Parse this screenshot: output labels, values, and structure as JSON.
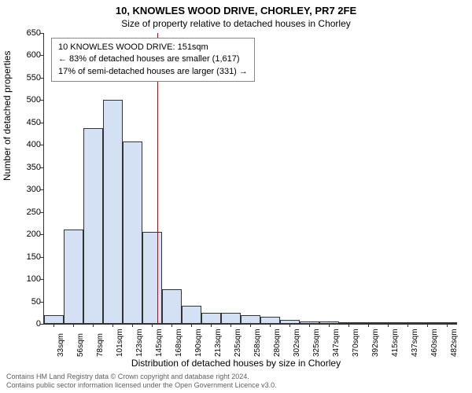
{
  "title": "10, KNOWLES WOOD DRIVE, CHORLEY, PR7 2FE",
  "subtitle": "Size of property relative to detached houses in Chorley",
  "ylabel": "Number of detached properties",
  "xlabel": "Distribution of detached houses by size in Chorley",
  "info_box": {
    "line1": "10 KNOWLES WOOD DRIVE: 151sqm",
    "line2": "← 83% of detached houses are smaller (1,617)",
    "line3": "17% of semi-detached houses are larger (331) →"
  },
  "chart": {
    "type": "histogram",
    "ylim": [
      0,
      650
    ],
    "ytick_step": 50,
    "bar_fill": "#d4e1f5",
    "bar_stroke": "#333333",
    "refline_color": "#cc0000",
    "refline_x_value": 151,
    "background_color": "#ffffff",
    "categories": [
      "33sqm",
      "56sqm",
      "78sqm",
      "101sqm",
      "123sqm",
      "145sqm",
      "168sqm",
      "190sqm",
      "213sqm",
      "235sqm",
      "258sqm",
      "280sqm",
      "302sqm",
      "325sqm",
      "347sqm",
      "370sqm",
      "392sqm",
      "415sqm",
      "437sqm",
      "460sqm",
      "482sqm"
    ],
    "values": [
      20,
      210,
      438,
      500,
      408,
      205,
      78,
      40,
      25,
      25,
      20,
      15,
      8,
      6,
      5,
      4,
      4,
      2,
      3,
      2,
      2
    ]
  },
  "footer": {
    "line1": "Contains HM Land Registry data © Crown copyright and database right 2024.",
    "line2": "Contains public sector information licensed under the Open Government Licence v3.0."
  }
}
